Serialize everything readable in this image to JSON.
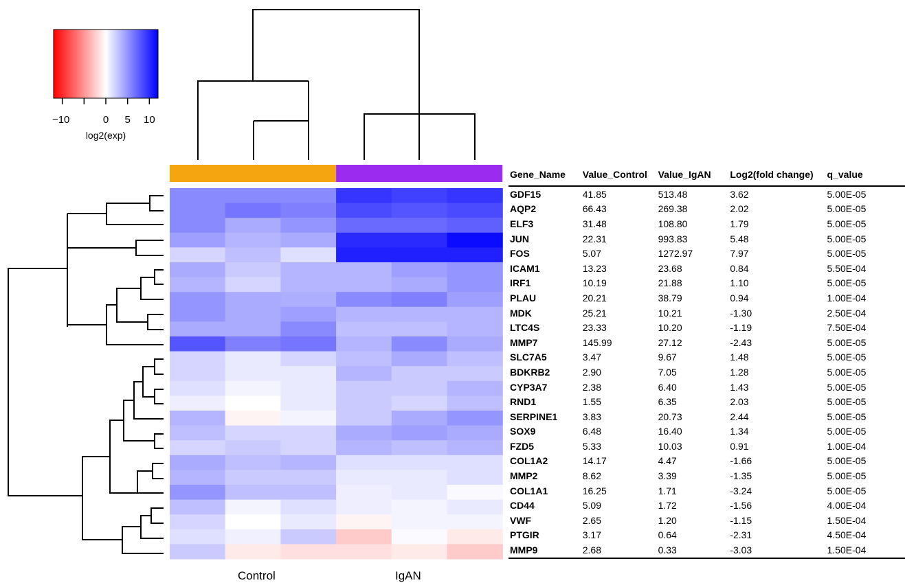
{
  "chart_data": {
    "type": "heatmap",
    "color_key": {
      "label": "log2(exp)",
      "ticks": [
        "−10",
        "0",
        "5",
        "10"
      ],
      "range": [
        -12,
        12
      ],
      "low_color": "#ff0000",
      "mid_color": "#ffffff",
      "high_color": "#0000ff"
    },
    "groups": [
      {
        "name": "Control",
        "color": "#f5a50f",
        "columns": 3
      },
      {
        "name": "IgAN",
        "color": "#9b2bee",
        "columns": 3
      }
    ],
    "rows": [
      "GDF15",
      "AQP2",
      "ELF3",
      "JUN",
      "FOS",
      "ICAM1",
      "IRF1",
      "PLAU",
      "MDK",
      "LTC4S",
      "MMP7",
      "SLC7A5",
      "BDKRB2",
      "CYP3A7",
      "RND1",
      "SERPINE1",
      "SOX9",
      "FZD5",
      "COL1A2",
      "MMP2",
      "COL1A1",
      "CD44",
      "VWF",
      "PTGIR",
      "MMP9"
    ],
    "values": [
      [
        5.5,
        5.5,
        5.5,
        9.5,
        9.0,
        9.5
      ],
      [
        5.5,
        6.5,
        6.0,
        8.5,
        8.0,
        8.5
      ],
      [
        5.5,
        4.0,
        5.0,
        7.0,
        7.0,
        7.5
      ],
      [
        4.5,
        3.5,
        4.0,
        10.0,
        10.0,
        11.5
      ],
      [
        2.0,
        3.0,
        1.5,
        10.5,
        10.5,
        10.5
      ],
      [
        4.0,
        2.5,
        3.5,
        3.5,
        4.5,
        5.0
      ],
      [
        3.5,
        2.0,
        3.5,
        3.5,
        4.0,
        5.0
      ],
      [
        5.0,
        4.0,
        3.8,
        5.5,
        6.0,
        4.5
      ],
      [
        5.0,
        4.0,
        4.5,
        3.5,
        3.5,
        3.5
      ],
      [
        4.0,
        4.0,
        5.5,
        3.0,
        3.0,
        3.5
      ],
      [
        8.0,
        6.0,
        6.5,
        3.5,
        5.5,
        4.0
      ],
      [
        2.0,
        1.0,
        2.0,
        3.0,
        4.0,
        3.0
      ],
      [
        2.0,
        1.0,
        1.0,
        3.5,
        2.5,
        2.5
      ],
      [
        1.5,
        0.5,
        1.0,
        2.5,
        2.5,
        3.5
      ],
      [
        0.8,
        0.0,
        1.0,
        2.5,
        2.0,
        3.0
      ],
      [
        3.5,
        -0.5,
        0.5,
        2.5,
        4.0,
        5.0
      ],
      [
        3.0,
        2.0,
        2.0,
        4.0,
        4.5,
        4.0
      ],
      [
        2.0,
        2.5,
        2.0,
        3.5,
        3.0,
        3.5
      ],
      [
        4.0,
        3.0,
        3.5,
        1.5,
        1.5,
        1.5
      ],
      [
        3.5,
        2.5,
        2.5,
        1.0,
        1.0,
        1.5
      ],
      [
        5.0,
        3.0,
        3.0,
        0.8,
        1.0,
        0.3
      ],
      [
        3.0,
        0.5,
        1.5,
        0.8,
        0.5,
        1.0
      ],
      [
        2.0,
        0.0,
        1.0,
        -0.5,
        0.5,
        0.5
      ],
      [
        1.5,
        0.7,
        2.5,
        -2.5,
        0.2,
        -1.0
      ],
      [
        2.5,
        -1.0,
        -1.5,
        -1.5,
        -1.0,
        -2.5
      ]
    ],
    "xlabels": [
      "Control",
      "IgAN"
    ]
  },
  "table": {
    "columns": [
      "Gene_Name",
      "Value_Control",
      "Value_IgAN",
      "Log2(fold change)",
      "q_value"
    ],
    "rows": [
      [
        "GDF15",
        "41.85",
        "513.48",
        "3.62",
        "5.00E-05"
      ],
      [
        "AQP2",
        "66.43",
        "269.38",
        "2.02",
        "5.00E-05"
      ],
      [
        "ELF3",
        "31.48",
        "108.80",
        "1.79",
        "5.00E-05"
      ],
      [
        "JUN",
        "22.31",
        "993.83",
        "5.48",
        "5.00E-05"
      ],
      [
        "FOS",
        "5.07",
        "1272.97",
        "7.97",
        "5.00E-05"
      ],
      [
        "ICAM1",
        "13.23",
        "23.68",
        "0.84",
        "5.50E-04"
      ],
      [
        "IRF1",
        "10.19",
        "21.88",
        "1.10",
        "5.00E-05"
      ],
      [
        "PLAU",
        "20.21",
        "38.79",
        "0.94",
        "1.00E-04"
      ],
      [
        "MDK",
        "25.21",
        "10.21",
        "-1.30",
        "2.50E-04"
      ],
      [
        "LTC4S",
        "23.33",
        "10.20",
        "-1.19",
        "7.50E-04"
      ],
      [
        "MMP7",
        "145.99",
        "27.12",
        "-2.43",
        "5.00E-05"
      ],
      [
        "SLC7A5",
        "3.47",
        "9.67",
        "1.48",
        "5.00E-05"
      ],
      [
        "BDKRB2",
        "2.90",
        "7.05",
        "1.28",
        "5.00E-05"
      ],
      [
        "CYP3A7",
        "2.38",
        "6.40",
        "1.43",
        "5.00E-05"
      ],
      [
        "RND1",
        "1.55",
        "6.35",
        "2.03",
        "5.00E-05"
      ],
      [
        "SERPINE1",
        "3.83",
        "20.73",
        "2.44",
        "5.00E-05"
      ],
      [
        "SOX9",
        "6.48",
        "16.40",
        "1.34",
        "5.00E-05"
      ],
      [
        "FZD5",
        "5.33",
        "10.03",
        "0.91",
        "1.00E-04"
      ],
      [
        "COL1A2",
        "14.17",
        "4.47",
        "-1.66",
        "5.00E-05"
      ],
      [
        "MMP2",
        "8.62",
        "3.39",
        "-1.35",
        "5.00E-05"
      ],
      [
        "COL1A1",
        "16.25",
        "1.71",
        "-3.24",
        "5.00E-05"
      ],
      [
        "CD44",
        "5.09",
        "1.72",
        "-1.56",
        "4.00E-04"
      ],
      [
        "VWF",
        "2.65",
        "1.20",
        "-1.15",
        "1.50E-04"
      ],
      [
        "PTGIR",
        "3.17",
        "0.64",
        "-2.31",
        "4.50E-04"
      ],
      [
        "MMP9",
        "2.68",
        "0.33",
        "-3.03",
        "1.50E-04"
      ]
    ]
  }
}
